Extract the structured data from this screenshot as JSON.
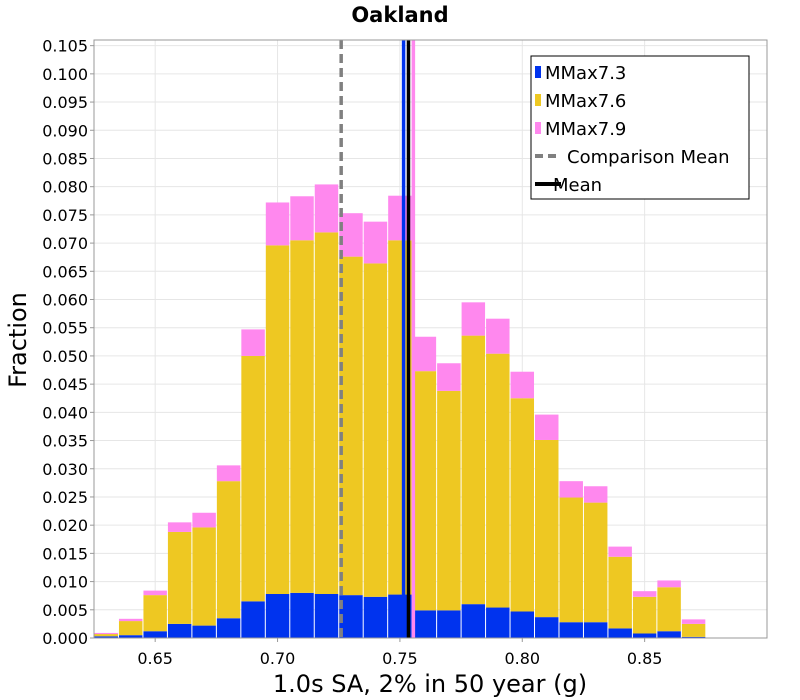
{
  "chart_data": {
    "type": "bar",
    "stacked": true,
    "title": "Oakland",
    "xlabel": "1.0s SA, 2% in 50 year (g)",
    "ylabel": "Fraction",
    "xlim": [
      0.625,
      0.9
    ],
    "ylim": [
      0,
      0.106
    ],
    "grid": true,
    "legend_position": "top-right",
    "x_ticks": [
      0.65,
      0.7,
      0.75,
      0.8,
      0.85
    ],
    "x_tick_labels": [
      "0.65",
      "0.70",
      "0.75",
      "0.80",
      "0.85"
    ],
    "y_ticks": [
      0,
      0.005,
      0.01,
      0.015,
      0.02,
      0.025,
      0.03,
      0.035,
      0.04,
      0.045,
      0.05,
      0.055,
      0.06,
      0.065,
      0.07,
      0.075,
      0.08,
      0.085,
      0.09,
      0.095,
      0.1,
      0.105
    ],
    "y_tick_labels": [
      "0.000",
      "0.005",
      "0.010",
      "0.015",
      "0.020",
      "0.025",
      "0.030",
      "0.035",
      "0.040",
      "0.045",
      "0.050",
      "0.055",
      "0.060",
      "0.065",
      "0.070",
      "0.075",
      "0.080",
      "0.085",
      "0.090",
      "0.095",
      "0.100",
      "0.105"
    ],
    "bin_width": 0.01,
    "x": [
      0.63,
      0.64,
      0.65,
      0.66,
      0.67,
      0.68,
      0.69,
      0.7,
      0.71,
      0.72,
      0.73,
      0.74,
      0.75,
      0.76,
      0.77,
      0.78,
      0.79,
      0.8,
      0.81,
      0.82,
      0.83,
      0.84,
      0.85,
      0.86,
      0.87
    ],
    "series": [
      {
        "name": "MMax7.3",
        "color": "#0033ee",
        "values": [
          0.0003,
          0.0005,
          0.0012,
          0.0025,
          0.0022,
          0.0035,
          0.0065,
          0.0078,
          0.008,
          0.0078,
          0.0076,
          0.0073,
          0.0077,
          0.0049,
          0.0049,
          0.006,
          0.0054,
          0.0047,
          0.0037,
          0.0028,
          0.0028,
          0.0017,
          0.0008,
          0.0012,
          0.0002
        ]
      },
      {
        "name": "MMax7.6",
        "color": "#eec822",
        "values": [
          0.0004,
          0.0025,
          0.0064,
          0.0163,
          0.0174,
          0.0243,
          0.0435,
          0.0618,
          0.0625,
          0.0641,
          0.06,
          0.0591,
          0.0628,
          0.0424,
          0.0389,
          0.0476,
          0.045,
          0.0378,
          0.0314,
          0.0221,
          0.0212,
          0.0127,
          0.0065,
          0.0078,
          0.0023
        ]
      },
      {
        "name": "MMax7.9",
        "color": "#ff88ee",
        "values": [
          0.0002,
          0.0004,
          0.0008,
          0.0017,
          0.0026,
          0.0028,
          0.0047,
          0.0076,
          0.0078,
          0.0085,
          0.0077,
          0.0074,
          0.0079,
          0.0061,
          0.0049,
          0.0059,
          0.0062,
          0.0047,
          0.0045,
          0.0029,
          0.0029,
          0.0018,
          0.001,
          0.0012,
          0.0008
        ]
      }
    ],
    "vlines": [
      {
        "name": "Comparison Mean",
        "x": 0.726,
        "color": "#808080",
        "style": "dashed"
      },
      {
        "name": "Mean",
        "x": 0.7535,
        "color": "#000000",
        "style": "solid"
      },
      {
        "name": "MMax7.3 mean",
        "x": 0.7515,
        "color": "#0033ee",
        "style": "solid"
      },
      {
        "name": "MMax7.9 mean",
        "x": 0.7555,
        "color": "#ff88ee",
        "style": "solid"
      }
    ],
    "legend": [
      {
        "label": "MMax7.3",
        "kind": "patch",
        "color": "#0033ee"
      },
      {
        "label": "MMax7.6",
        "kind": "patch",
        "color": "#eec822"
      },
      {
        "label": "MMax7.9",
        "kind": "patch",
        "color": "#ff88ee"
      },
      {
        "label": "Comparison Mean",
        "kind": "dashed",
        "color": "#808080"
      },
      {
        "label": "Mean",
        "kind": "solid",
        "color": "#000000"
      }
    ]
  }
}
